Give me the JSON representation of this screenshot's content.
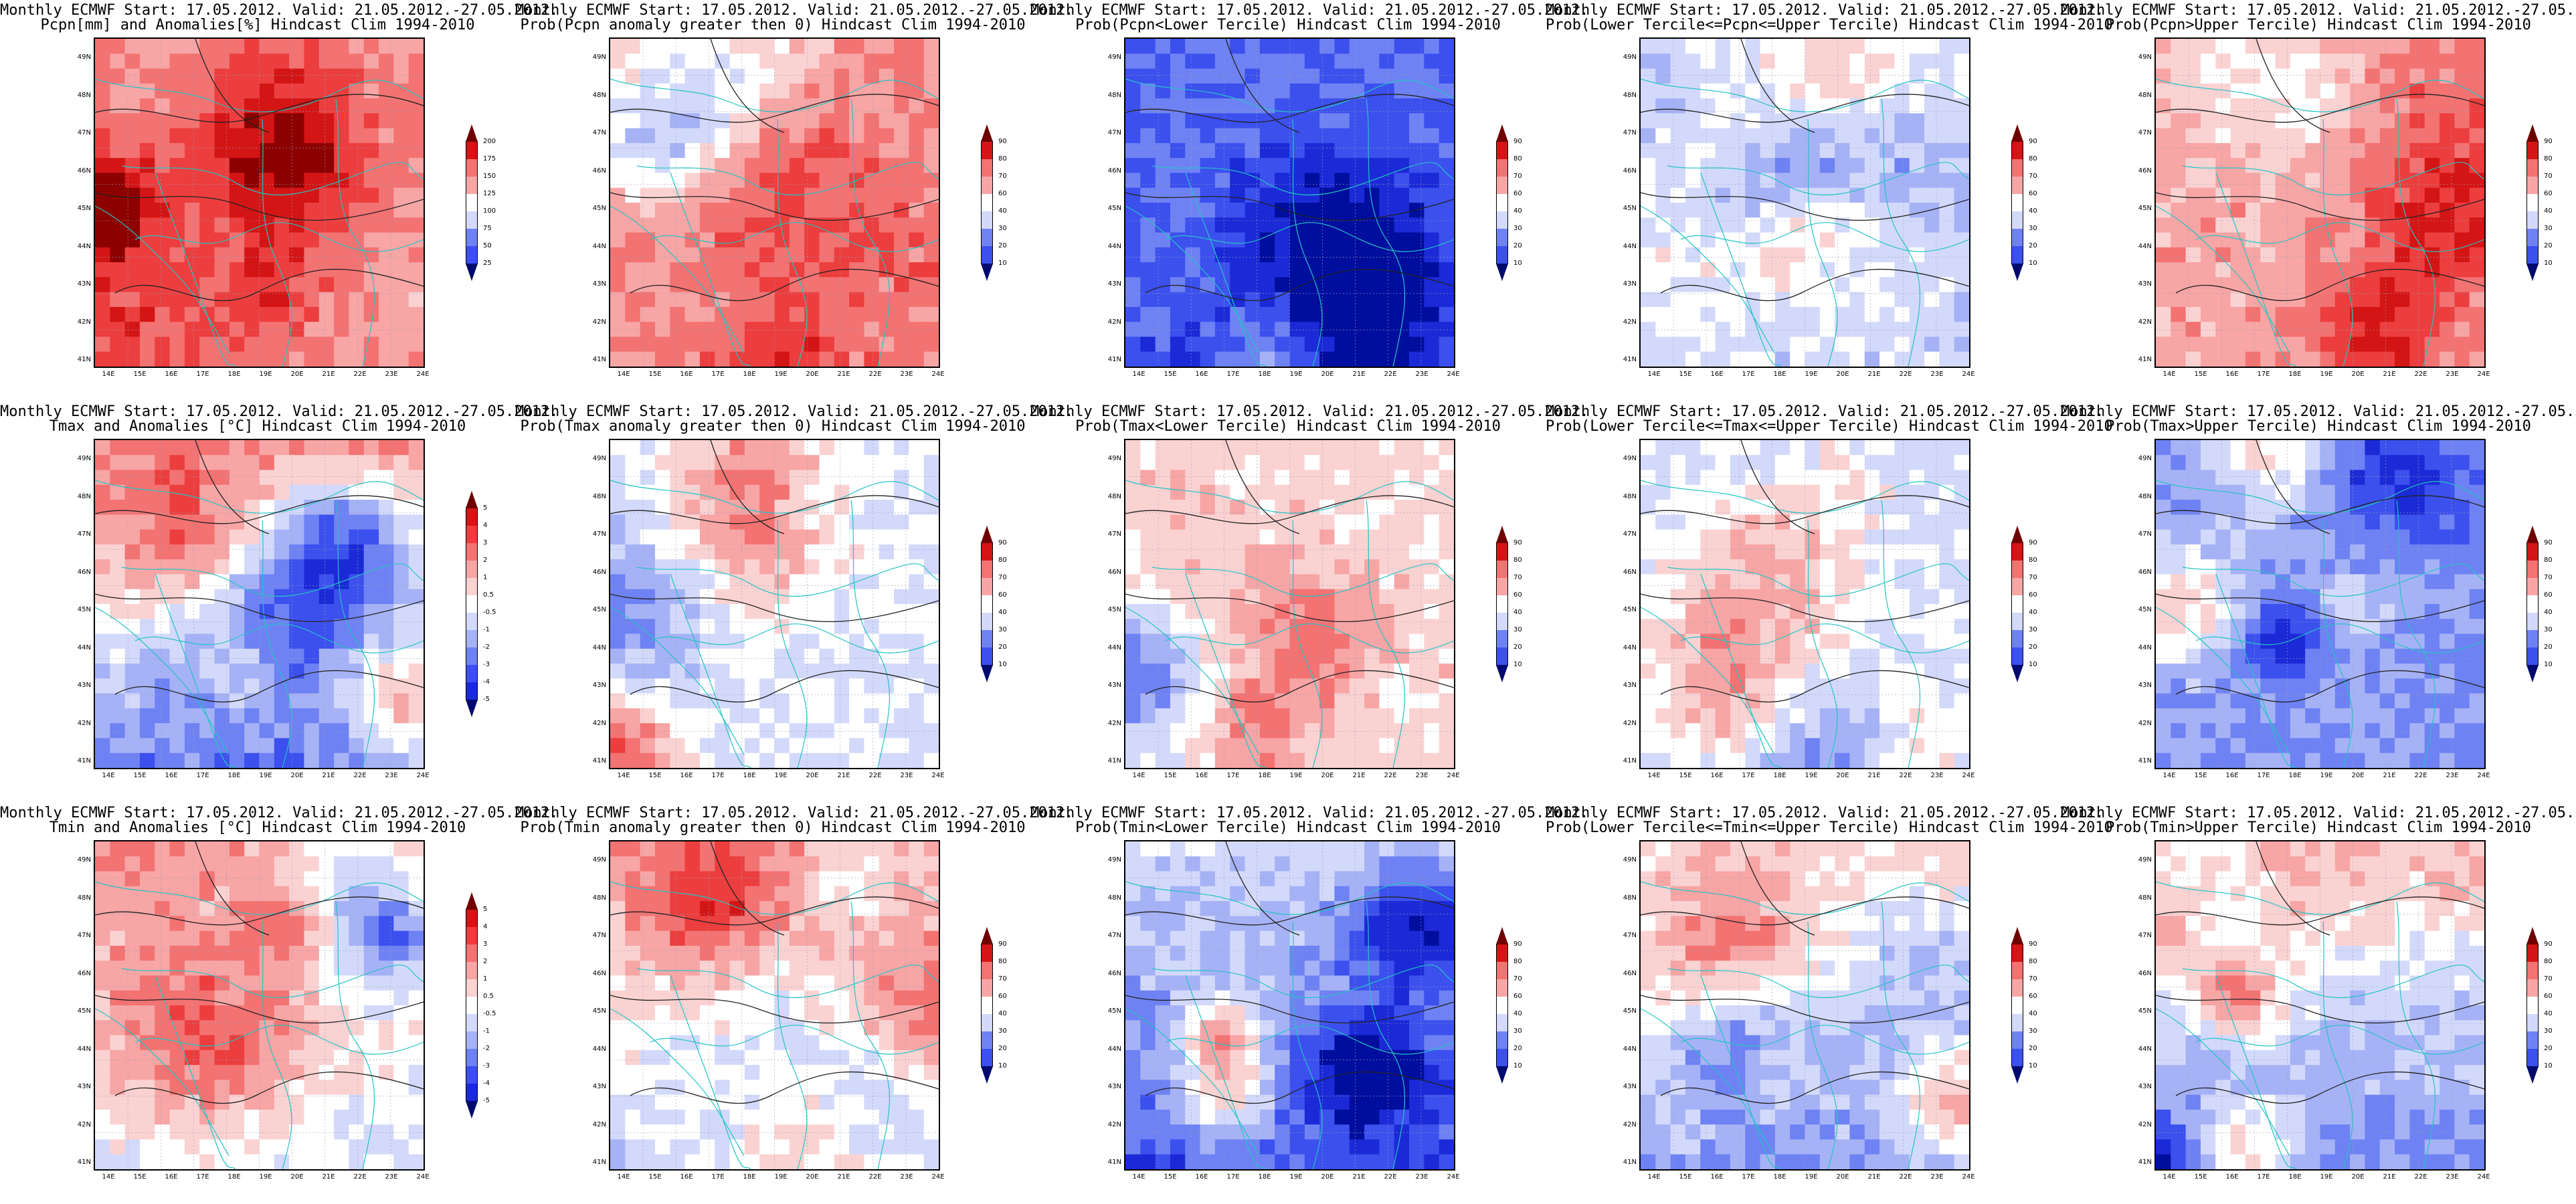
{
  "header_line": "Monthly ECMWF Start: 17.05.2012. Valid: 21.05.2012.-27.05.2012.",
  "lon_labels": [
    "14E",
    "15E",
    "16E",
    "17E",
    "18E",
    "19E",
    "20E",
    "21E",
    "22E",
    "23E",
    "24E"
  ],
  "lat_labels": [
    "41N",
    "42N",
    "43N",
    "44N",
    "45N",
    "46N",
    "47N",
    "48N",
    "49N"
  ],
  "scales": {
    "pcpn": [
      "25",
      "50",
      "75",
      "100",
      "125",
      "150",
      "175",
      "200"
    ],
    "prob": [
      "10",
      "20",
      "30",
      "40",
      "60",
      "70",
      "80",
      "90"
    ],
    "temp": [
      "-5",
      "-4",
      "-3",
      "-2",
      "-1",
      "-0.5",
      "0.5",
      "1",
      "2",
      "3",
      "4",
      "5"
    ]
  },
  "colors": {
    "blue_scale": [
      "#000e9e",
      "#1b2ad6",
      "#3c50ee",
      "#6f82f3",
      "#a6b2f6",
      "#d3d9fa"
    ],
    "red_scale": [
      "#fbd2d2",
      "#f7a5a5",
      "#f37272",
      "#ec3e3e",
      "#d41515",
      "#8c0000"
    ],
    "contour": "#222222",
    "borders": "#22c4c4"
  },
  "panels": [
    {
      "row": 0,
      "col": 0,
      "title2": "Pcpn[mm] and Anomalies[%] Hindcast Clim 1994-2010",
      "scale": "pcpn",
      "bias": 0.55,
      "seed": 1
    },
    {
      "row": 0,
      "col": 1,
      "title2": "Prob(Pcpn anomaly greater then 0) Hindcast Clim 1994-2010",
      "scale": "prob",
      "bias": 0.6,
      "seed": 2
    },
    {
      "row": 0,
      "col": 2,
      "title2": "Prob(Pcpn<Lower Tercile) Hindcast Clim 1994-2010",
      "scale": "prob",
      "bias": -0.85,
      "seed": 3
    },
    {
      "row": 0,
      "col": 3,
      "title2": "Prob(Lower Tercile<=Pcpn<=Upper Tercile) Hindcast Clim 1994-2010",
      "scale": "prob",
      "bias": -0.3,
      "seed": 4
    },
    {
      "row": 0,
      "col": 4,
      "title2": "Prob(Pcpn>Upper Tercile) Hindcast Clim 1994-2010",
      "scale": "prob",
      "bias": 0.5,
      "seed": 5
    },
    {
      "row": 1,
      "col": 0,
      "title2": "Tmax and Anomalies [°C] Hindcast Clim 1994-2010",
      "scale": "temp",
      "bias": 0.0,
      "seed": 6
    },
    {
      "row": 1,
      "col": 1,
      "title2": "Prob(Tmax anomaly greater then 0) Hindcast Clim 1994-2010",
      "scale": "prob",
      "bias": -0.1,
      "seed": 7
    },
    {
      "row": 1,
      "col": 2,
      "title2": "Prob(Tmax<Lower Tercile) Hindcast Clim 1994-2010",
      "scale": "prob",
      "bias": 0.2,
      "seed": 8
    },
    {
      "row": 1,
      "col": 3,
      "title2": "Prob(Lower Tercile<=Tmax<=Upper Tercile) Hindcast Clim 1994-2010",
      "scale": "prob",
      "bias": -0.2,
      "seed": 9
    },
    {
      "row": 1,
      "col": 4,
      "title2": "Prob(Tmax>Upper Tercile) Hindcast Clim 1994-2010",
      "scale": "prob",
      "bias": -0.6,
      "seed": 10
    },
    {
      "row": 2,
      "col": 0,
      "title2": "Tmin and Anomalies [°C] Hindcast Clim 1994-2010",
      "scale": "temp",
      "bias": 0.2,
      "seed": 11
    },
    {
      "row": 2,
      "col": 1,
      "title2": "Prob(Tmin anomaly greater then 0) Hindcast Clim 1994-2010",
      "scale": "prob",
      "bias": 0.1,
      "seed": 12
    },
    {
      "row": 2,
      "col": 2,
      "title2": "Prob(Tmin<Lower Tercile) Hindcast Clim 1994-2010",
      "scale": "prob",
      "bias": -0.6,
      "seed": 13
    },
    {
      "row": 2,
      "col": 3,
      "title2": "Prob(Lower Tercile<=Tmin<=Upper Tercile) Hindcast Clim 1994-2010",
      "scale": "prob",
      "bias": -0.2,
      "seed": 14
    },
    {
      "row": 2,
      "col": 4,
      "title2": "Prob(Tmin>Upper Tercile) Hindcast Clim 1994-2010",
      "scale": "prob",
      "bias": -0.3,
      "seed": 15
    }
  ]
}
